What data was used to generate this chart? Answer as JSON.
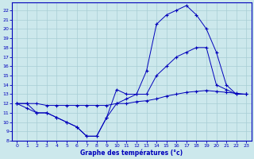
{
  "title": "Graphe des températures (°c)",
  "bg_color": "#cce8ec",
  "grid_color": "#a8cdd4",
  "line_color": "#0000bb",
  "xlim": [
    -0.5,
    23.5
  ],
  "ylim": [
    8,
    22.8
  ],
  "x_ticks": [
    0,
    1,
    2,
    3,
    4,
    5,
    6,
    7,
    8,
    9,
    10,
    11,
    12,
    13,
    14,
    15,
    16,
    17,
    18,
    19,
    20,
    21,
    22,
    23
  ],
  "y_ticks": [
    8,
    9,
    10,
    11,
    12,
    13,
    14,
    15,
    16,
    17,
    18,
    19,
    20,
    21,
    22
  ],
  "line1_x": [
    0,
    1,
    2,
    3,
    4,
    5,
    6,
    7,
    8,
    9,
    10,
    11,
    12,
    13,
    14,
    15,
    16,
    17,
    18,
    19,
    20,
    21,
    22,
    23
  ],
  "line1_y": [
    12,
    12,
    11,
    11,
    10.5,
    10,
    9.5,
    8.5,
    8.5,
    10.5,
    13.5,
    13,
    13,
    15.5,
    20.5,
    21.5,
    22,
    22.5,
    21.5,
    20,
    17.5,
    14,
    13,
    13
  ],
  "line2_x": [
    0,
    1,
    2,
    3,
    4,
    5,
    6,
    7,
    8,
    9,
    10,
    11,
    12,
    13,
    14,
    15,
    16,
    17,
    18,
    19,
    20,
    21,
    22,
    23
  ],
  "line2_y": [
    12,
    11.5,
    11,
    11,
    10.5,
    10,
    9.5,
    8.5,
    8.5,
    10.5,
    12,
    12.5,
    13,
    13,
    15,
    16,
    17,
    17.5,
    18,
    18,
    14,
    13.5,
    13,
    13
  ],
  "line3_x": [
    0,
    1,
    2,
    3,
    4,
    5,
    6,
    7,
    8,
    9,
    10,
    11,
    12,
    13,
    14,
    15,
    16,
    17,
    18,
    19,
    20,
    21,
    22,
    23
  ],
  "line3_y": [
    12,
    12,
    12,
    11.8,
    11.8,
    11.8,
    11.8,
    11.8,
    11.8,
    11.8,
    12,
    12,
    12.2,
    12.3,
    12.5,
    12.8,
    13,
    13.2,
    13.3,
    13.4,
    13.3,
    13.2,
    13.1,
    13
  ]
}
